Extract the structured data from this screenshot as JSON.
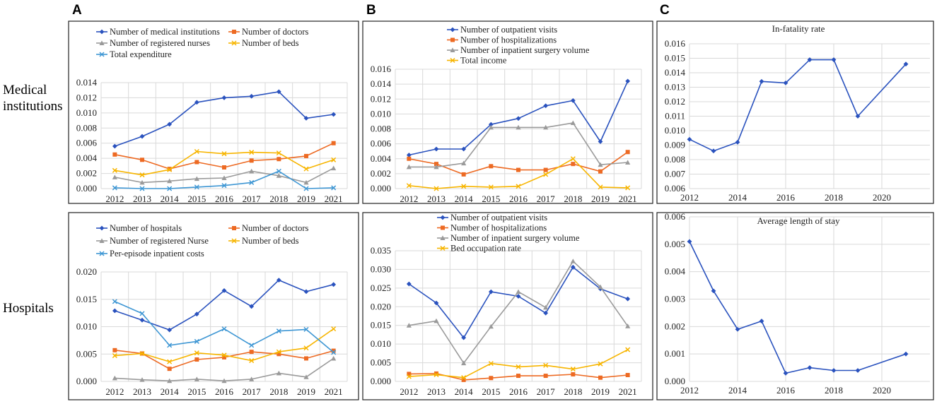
{
  "figure": {
    "panel_letters": [
      "A",
      "B",
      "C"
    ],
    "row_labels": [
      "Medical institutions",
      "Hospitals"
    ]
  },
  "chart_data": [
    {
      "id": "A1",
      "type": "line",
      "title": "",
      "categories": [
        "2012",
        "2013",
        "2014",
        "2015",
        "2016",
        "2017",
        "2018",
        "2019",
        "2021"
      ],
      "ylim": [
        0,
        0.014
      ],
      "yticks": [
        "0.000",
        "0.002",
        "0.004",
        "0.006",
        "0.008",
        "0.010",
        "0.012",
        "0.014"
      ],
      "series": [
        {
          "name": "Number of medical institutions",
          "color": "#2a52be",
          "marker": "diamond",
          "values": [
            0.0056,
            0.0069,
            0.0085,
            0.0114,
            0.012,
            0.0122,
            0.0128,
            0.0093,
            0.0098
          ]
        },
        {
          "name": "Number of doctors",
          "color": "#ed6a23",
          "marker": "square",
          "values": [
            0.0045,
            0.0038,
            0.0026,
            0.0035,
            0.0028,
            0.0037,
            0.0039,
            0.0043,
            0.006
          ]
        },
        {
          "name": "Number of registered nurses",
          "color": "#9a9a9a",
          "marker": "triangle",
          "values": [
            0.0015,
            0.0008,
            0.001,
            0.0013,
            0.0014,
            0.0023,
            0.0017,
            0.0008,
            0.0027
          ]
        },
        {
          "name": "Number of beds",
          "color": "#f7b500",
          "marker": "x",
          "values": [
            0.0024,
            0.0018,
            0.0025,
            0.0049,
            0.0046,
            0.0048,
            0.0047,
            0.0026,
            0.0038
          ]
        },
        {
          "name": "Total expenditure",
          "color": "#3f97d4",
          "marker": "x",
          "values": [
            0.0001,
            0.0,
            0.0,
            0.0002,
            0.0004,
            0.0008,
            0.0023,
            0.0,
            0.0001
          ]
        }
      ]
    },
    {
      "id": "B1",
      "type": "line",
      "title": "",
      "categories": [
        "2012",
        "2013",
        "2014",
        "2015",
        "2016",
        "2017",
        "2018",
        "2019",
        "2021"
      ],
      "ylim": [
        0,
        0.016
      ],
      "yticks": [
        "0.000",
        "0.002",
        "0.004",
        "0.006",
        "0.008",
        "0.010",
        "0.012",
        "0.014",
        "0.016"
      ],
      "series": [
        {
          "name": "Number of outpatient visits",
          "color": "#2a52be",
          "marker": "diamond",
          "values": [
            0.0045,
            0.0053,
            0.0053,
            0.0086,
            0.0094,
            0.0111,
            0.0118,
            0.0063,
            0.0144
          ]
        },
        {
          "name": "Number of hospitalizations",
          "color": "#ed6a23",
          "marker": "square",
          "values": [
            0.004,
            0.0033,
            0.0019,
            0.003,
            0.0025,
            0.0025,
            0.0033,
            0.0023,
            0.0049
          ]
        },
        {
          "name": "Number of inpatient surgery volume",
          "color": "#9a9a9a",
          "marker": "triangle",
          "values": [
            0.0029,
            0.0029,
            0.0034,
            0.0082,
            0.0082,
            0.0082,
            0.0088,
            0.0032,
            0.0035
          ]
        },
        {
          "name": "Total income",
          "color": "#f7b500",
          "marker": "x",
          "values": [
            0.0004,
            0.0,
            0.0003,
            0.0002,
            0.0003,
            0.0019,
            0.004,
            0.0002,
            0.0001
          ]
        }
      ]
    },
    {
      "id": "C1",
      "type": "line",
      "title": "In-fatality rate",
      "x": [
        2012,
        2013,
        2014,
        2015,
        2016,
        2017,
        2018,
        2019,
        2021
      ],
      "xticks": [
        "2012",
        "2014",
        "2016",
        "2018",
        "2020"
      ],
      "xlim": [
        2012,
        2022
      ],
      "ylim": [
        0.006,
        0.016
      ],
      "yticks": [
        "0.006",
        "0.007",
        "0.008",
        "0.009",
        "0.010",
        "0.011",
        "0.012",
        "0.013",
        "0.014",
        "0.015",
        "0.016"
      ],
      "series": [
        {
          "name": "In-fatality rate",
          "color": "#2a52be",
          "marker": "diamond",
          "values": [
            0.0094,
            0.0086,
            0.0092,
            0.0134,
            0.0133,
            0.0149,
            0.0149,
            0.011,
            0.0146
          ]
        }
      ]
    },
    {
      "id": "A2",
      "type": "line",
      "title": "",
      "categories": [
        "2012",
        "2013",
        "2014",
        "2015",
        "2016",
        "2017",
        "2018",
        "2019",
        "2021"
      ],
      "ylim": [
        0,
        0.02
      ],
      "yticks": [
        "0.000",
        "0.005",
        "0.010",
        "0.015",
        "0.020"
      ],
      "series": [
        {
          "name": "Number of hospitals",
          "color": "#2a52be",
          "marker": "diamond",
          "values": [
            0.0129,
            0.0112,
            0.0094,
            0.0123,
            0.0166,
            0.0137,
            0.0185,
            0.0164,
            0.0177
          ]
        },
        {
          "name": "Number of doctors",
          "color": "#ed6a23",
          "marker": "square",
          "values": [
            0.0057,
            0.0051,
            0.0023,
            0.004,
            0.0044,
            0.0054,
            0.005,
            0.0042,
            0.0056
          ]
        },
        {
          "name": "Number of registered Nurse",
          "color": "#9a9a9a",
          "marker": "triangle",
          "values": [
            0.0006,
            0.0003,
            0.0001,
            0.0004,
            0.0001,
            0.0004,
            0.0015,
            0.0008,
            0.0042
          ]
        },
        {
          "name": "Number of beds",
          "color": "#f7b500",
          "marker": "x",
          "values": [
            0.0047,
            0.0051,
            0.0036,
            0.0052,
            0.0048,
            0.0038,
            0.0054,
            0.0061,
            0.0096
          ]
        },
        {
          "name": "Per-episode inpatient costs",
          "color": "#3f97d4",
          "marker": "x",
          "values": [
            0.0146,
            0.0124,
            0.0066,
            0.0073,
            0.0096,
            0.0066,
            0.0092,
            0.0095,
            0.0053
          ]
        }
      ]
    },
    {
      "id": "B2",
      "type": "line",
      "title": "",
      "categories": [
        "2012",
        "2013",
        "2014",
        "2015",
        "2016",
        "2017",
        "2018",
        "2019",
        "2021"
      ],
      "ylim": [
        0,
        0.035
      ],
      "yticks": [
        "0.000",
        "0.005",
        "0.010",
        "0.015",
        "0.020",
        "0.025",
        "0.030",
        "0.035"
      ],
      "series": [
        {
          "name": "Number of outpatient visits",
          "color": "#2a52be",
          "marker": "diamond",
          "values": [
            0.0261,
            0.021,
            0.0117,
            0.024,
            0.0228,
            0.0183,
            0.0306,
            0.0248,
            0.0221
          ]
        },
        {
          "name": "Number of hospitalizations",
          "color": "#ed6a23",
          "marker": "square",
          "values": [
            0.002,
            0.0021,
            0.0004,
            0.0009,
            0.0015,
            0.0015,
            0.0019,
            0.001,
            0.0017
          ]
        },
        {
          "name": "Number of inpatient surgery volume",
          "color": "#9a9a9a",
          "marker": "triangle",
          "values": [
            0.015,
            0.0162,
            0.0049,
            0.0147,
            0.024,
            0.0198,
            0.0322,
            0.0253,
            0.0148
          ]
        },
        {
          "name": "Bed occupation rate",
          "color": "#f7b500",
          "marker": "x",
          "values": [
            0.0013,
            0.0018,
            0.001,
            0.0048,
            0.0039,
            0.0043,
            0.0033,
            0.0047,
            0.0085
          ]
        }
      ]
    },
    {
      "id": "C2",
      "type": "line",
      "title": "Average length of stay",
      "x": [
        2012,
        2013,
        2014,
        2015,
        2016,
        2017,
        2018,
        2019,
        2021
      ],
      "xticks": [
        "2012",
        "2014",
        "2016",
        "2018",
        "2020"
      ],
      "xlim": [
        2012,
        2022
      ],
      "ylim": [
        0,
        0.006
      ],
      "yticks": [
        "0.000",
        "0.001",
        "0.002",
        "0.003",
        "0.004",
        "0.005",
        "0.006"
      ],
      "series": [
        {
          "name": "Average length of stay",
          "color": "#2a52be",
          "marker": "diamond",
          "values": [
            0.0051,
            0.0033,
            0.0019,
            0.0022,
            0.0003,
            0.0005,
            0.0004,
            0.0004,
            0.001
          ]
        }
      ]
    }
  ]
}
